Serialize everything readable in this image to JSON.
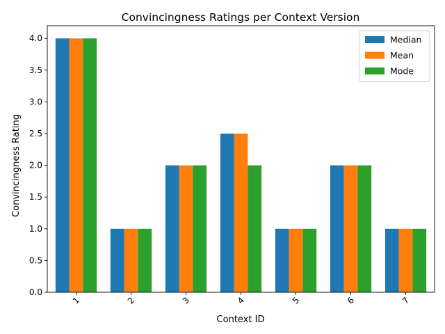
{
  "chart_data": {
    "type": "bar",
    "title": "Convincingness Ratings per Context Version",
    "xlabel": "Context ID",
    "ylabel": "Convincingness Rating",
    "categories": [
      "1",
      "2",
      "3",
      "4",
      "5",
      "6",
      "7"
    ],
    "series": [
      {
        "name": "Median",
        "color": "#1f77b4",
        "values": [
          4.0,
          1.0,
          2.0,
          2.5,
          1.0,
          2.0,
          1.0
        ]
      },
      {
        "name": "Mean",
        "color": "#ff7f0e",
        "values": [
          4.0,
          1.0,
          2.0,
          2.5,
          1.0,
          2.0,
          1.0
        ]
      },
      {
        "name": "Mode",
        "color": "#2ca02c",
        "values": [
          4.0,
          1.0,
          2.0,
          2.0,
          1.0,
          2.0,
          1.0
        ]
      }
    ],
    "ylim": [
      0,
      4.2
    ],
    "yticks": [
      "0.0",
      "0.5",
      "1.0",
      "1.5",
      "2.0",
      "2.5",
      "3.0",
      "3.5",
      "4.0"
    ],
    "x_tick_rotation_deg": 45,
    "grid": false,
    "legend_position": "top-right"
  }
}
